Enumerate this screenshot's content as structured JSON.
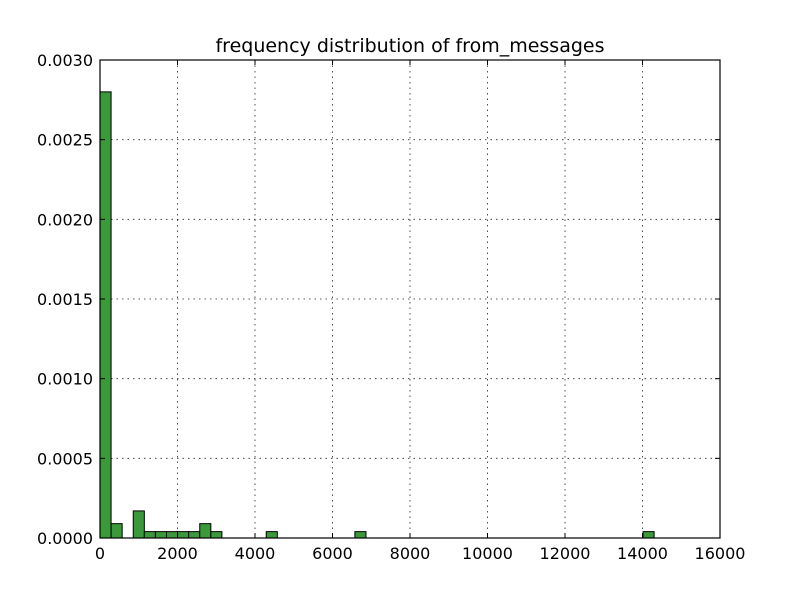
{
  "chart_data": {
    "type": "bar",
    "title": "frequency distribution of from_messages",
    "xlabel": "",
    "ylabel": "",
    "xlim": [
      0,
      16000
    ],
    "ylim": [
      0,
      0.003
    ],
    "grid": true,
    "bar_color": "#3a9a3a",
    "x_ticks": [
      "0",
      "2000",
      "4000",
      "6000",
      "8000",
      "10000",
      "12000",
      "14000",
      "16000"
    ],
    "y_ticks": [
      "0.0000",
      "0.0005",
      "0.0010",
      "0.0015",
      "0.0020",
      "0.0025",
      "0.0030"
    ],
    "bin_width": 286,
    "bins": [
      {
        "x0": 0,
        "value": 0.0028
      },
      {
        "x0": 286,
        "value": 9e-05
      },
      {
        "x0": 572,
        "value": 0
      },
      {
        "x0": 858,
        "value": 0.00017
      },
      {
        "x0": 1144,
        "value": 4e-05
      },
      {
        "x0": 1430,
        "value": 4e-05
      },
      {
        "x0": 1716,
        "value": 4e-05
      },
      {
        "x0": 2002,
        "value": 4e-05
      },
      {
        "x0": 2288,
        "value": 4e-05
      },
      {
        "x0": 2574,
        "value": 9e-05
      },
      {
        "x0": 2860,
        "value": 4e-05
      },
      {
        "x0": 4290,
        "value": 4e-05
      },
      {
        "x0": 6578,
        "value": 4e-05
      },
      {
        "x0": 14014,
        "value": 4e-05
      }
    ]
  }
}
